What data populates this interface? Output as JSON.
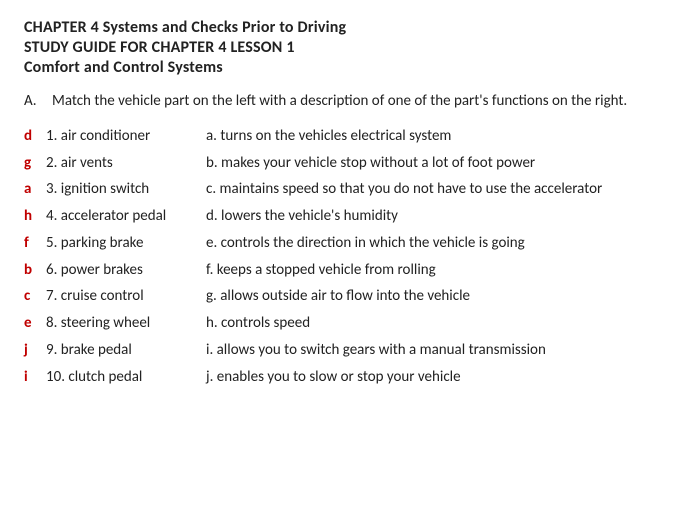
{
  "heading": {
    "line1": "CHAPTER 4  Systems and Checks Prior to Driving",
    "line2": "STUDY GUIDE FOR CHAPTER 4  LESSON 1",
    "line3": "Comfort and Control Systems"
  },
  "section": {
    "letter": "A.",
    "text": "Match the vehicle part on the left with a description of one of the part's functions on the right."
  },
  "rows": [
    {
      "ans": "d",
      "part": "1. air conditioner",
      "desc": "a. turns on the vehicles electrical system"
    },
    {
      "ans": "g",
      "part": "2. air vents",
      "desc": "b. makes your vehicle stop without a lot of foot power"
    },
    {
      "ans": "a",
      "part": "3. ignition switch",
      "desc": "c. maintains speed so that you do not have to use the accelerator"
    },
    {
      "ans": "h",
      "part": "4. accelerator pedal",
      "desc": "d. lowers the vehicle's humidity"
    },
    {
      "ans": "f",
      "part": "5. parking brake",
      "desc": "e. controls the direction in which the vehicle is going"
    },
    {
      "ans": "b",
      "part": "6. power brakes",
      "desc": "f. keeps a stopped vehicle from rolling"
    },
    {
      "ans": "c",
      "part": "7.  cruise control",
      "desc": "g. allows outside air to flow into the vehicle"
    },
    {
      "ans": "e",
      "part": "8. steering wheel",
      "desc": "h. controls speed"
    },
    {
      "ans": "j",
      "part": "9. brake pedal",
      "desc": "i. allows you to switch gears with a manual transmission"
    },
    {
      "ans": "i",
      "part": "10. clutch pedal",
      "desc": "j. enables you to slow or stop your vehicle"
    }
  ],
  "colors": {
    "answer": "#c00000",
    "text": "#222222",
    "background": "#ffffff"
  },
  "fontsizes": {
    "heading": 16,
    "body": 15
  }
}
